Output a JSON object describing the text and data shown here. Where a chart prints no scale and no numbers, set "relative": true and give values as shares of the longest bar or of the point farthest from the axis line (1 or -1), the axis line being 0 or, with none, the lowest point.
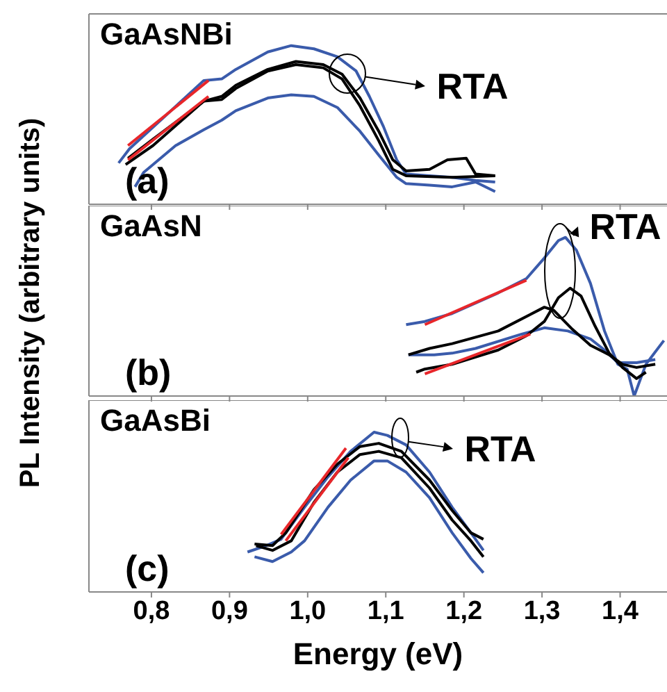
{
  "chart_data": [
    {
      "type": "line",
      "title": "GaAsNBi",
      "relative": true,
      "xlim": [
        0.72,
        1.46
      ],
      "tick_labels": false,
      "xticks": [
        0.8,
        0.9,
        1.0,
        1.1,
        1.2,
        1.3,
        1.4
      ],
      "annotations": [
        "(a)",
        "RTA"
      ],
      "series": [
        {
          "color": "#3a5bab",
          "x": [
            0.758,
            0.772,
            0.867,
            0.89,
            0.908,
            0.949,
            0.979,
            1.008,
            1.038,
            1.062,
            1.079,
            1.097,
            1.114,
            1.126,
            1.156,
            1.185,
            1.215,
            1.24
          ],
          "values": [
            0.26,
            0.35,
            0.78,
            0.79,
            0.85,
            0.96,
            1.0,
            0.98,
            0.93,
            0.84,
            0.68,
            0.49,
            0.28,
            0.19,
            0.18,
            0.17,
            0.15,
            0.14
          ]
        },
        {
          "color": "#3a5bab",
          "x": [
            0.779,
            0.79,
            0.831,
            0.867,
            0.89,
            0.908,
            0.949,
            0.979,
            1.008,
            1.038,
            1.067,
            1.091,
            1.114,
            1.126,
            1.156,
            1.185,
            1.215,
            1.24
          ],
          "values": [
            0.11,
            0.2,
            0.37,
            0.47,
            0.53,
            0.59,
            0.67,
            0.69,
            0.68,
            0.61,
            0.46,
            0.31,
            0.17,
            0.13,
            0.12,
            0.11,
            0.14,
            0.08
          ]
        },
        {
          "color": "#000000",
          "x": [
            0.77,
            0.802,
            0.867,
            0.89,
            0.908,
            0.949,
            0.985,
            1.02,
            1.044,
            1.067,
            1.091,
            1.109,
            1.126,
            1.156,
            1.179,
            1.203,
            1.215,
            1.24
          ],
          "values": [
            0.29,
            0.41,
            0.65,
            0.68,
            0.75,
            0.85,
            0.9,
            0.88,
            0.82,
            0.67,
            0.46,
            0.28,
            0.21,
            0.22,
            0.28,
            0.29,
            0.19,
            0.18
          ]
        },
        {
          "color": "#000000",
          "x": [
            0.767,
            0.802,
            0.867,
            0.89,
            0.908,
            0.949,
            0.985,
            1.02,
            1.044,
            1.067,
            1.091,
            1.109,
            1.126,
            1.185,
            1.24
          ],
          "values": [
            0.25,
            0.37,
            0.65,
            0.66,
            0.73,
            0.84,
            0.88,
            0.86,
            0.79,
            0.62,
            0.4,
            0.22,
            0.18,
            0.17,
            0.18
          ]
        },
        {
          "color": "#e8262a",
          "x": [
            0.77,
            0.873
          ],
          "values": [
            0.37,
            0.78
          ]
        },
        {
          "color": "#e8262a",
          "x": [
            0.77,
            0.873
          ],
          "values": [
            0.28,
            0.68
          ]
        }
      ]
    },
    {
      "type": "line",
      "title": "GaAsN",
      "ylabel": "PL Intensity (arbitrary units)",
      "relative": true,
      "xlim": [
        0.72,
        1.46
      ],
      "tick_labels": false,
      "xticks": [
        0.8,
        0.9,
        1.0,
        1.1,
        1.2,
        1.3,
        1.4
      ],
      "annotations": [
        "(b)",
        "RTA"
      ],
      "series": [
        {
          "color": "#3a5bab",
          "x": [
            1.126,
            1.15,
            1.185,
            1.244,
            1.28,
            1.303,
            1.321,
            1.33,
            1.344,
            1.362,
            1.38,
            1.397,
            1.409,
            1.418,
            1.433,
            1.456
          ],
          "values": [
            0.45,
            0.47,
            0.52,
            0.65,
            0.74,
            0.87,
            0.98,
            1.0,
            0.92,
            0.71,
            0.41,
            0.2,
            0.17,
            0,
            0.2,
            0.35
          ]
        },
        {
          "color": "#3a5bab",
          "x": [
            1.129,
            1.162,
            1.185,
            1.215,
            1.274,
            1.303,
            1.333,
            1.362,
            1.38,
            1.397,
            1.421,
            1.445
          ],
          "values": [
            0.26,
            0.26,
            0.27,
            0.3,
            0.39,
            0.43,
            0.41,
            0.36,
            0.29,
            0.21,
            0.21,
            0.23
          ]
        },
        {
          "color": "#000000",
          "x": [
            1.129,
            1.156,
            1.185,
            1.244,
            1.303,
            1.315,
            1.339,
            1.362,
            1.386,
            1.403,
            1.421,
            1.445
          ],
          "values": [
            0.26,
            0.3,
            0.33,
            0.41,
            0.56,
            0.54,
            0.42,
            0.32,
            0.26,
            0.2,
            0.18,
            0.2
          ]
        },
        {
          "color": "#000000",
          "x": [
            1.139,
            1.15,
            1.185,
            1.244,
            1.28,
            1.303,
            1.321,
            1.336,
            1.35,
            1.368,
            1.386,
            1.403,
            1.421,
            1.433
          ],
          "values": [
            0.15,
            0.17,
            0.2,
            0.29,
            0.38,
            0.47,
            0.62,
            0.68,
            0.63,
            0.44,
            0.27,
            0.18,
            0.11,
            0.15
          ]
        },
        {
          "color": "#e8262a",
          "x": [
            1.15,
            1.28
          ],
          "values": [
            0.45,
            0.73
          ]
        },
        {
          "color": "#e8262a",
          "x": [
            1.15,
            1.285
          ],
          "values": [
            0.14,
            0.39
          ]
        }
      ]
    },
    {
      "type": "line",
      "title": "GaAsBi",
      "xlabel": "Energy (eV)",
      "relative": true,
      "xlim": [
        0.72,
        1.46
      ],
      "tick_labels": "x",
      "xticks": [
        {
          "value": 0.8,
          "label": "0,8"
        },
        {
          "value": 0.9,
          "label": "0,9"
        },
        {
          "value": 1.0,
          "label": "1,0"
        },
        {
          "value": 1.1,
          "label": "1,1"
        },
        {
          "value": 1.2,
          "label": "1,2"
        },
        {
          "value": 1.3,
          "label": "1,3"
        },
        {
          "value": 1.4,
          "label": "1,4"
        }
      ],
      "annotations": [
        "(c)",
        "RTA"
      ],
      "series": [
        {
          "color": "#3a5bab",
          "x": [
            0.923,
            0.947,
            0.966,
            0.996,
            1.026,
            1.055,
            1.085,
            1.102,
            1.126,
            1.156,
            1.185,
            1.209,
            1.225
          ],
          "values": [
            0.25,
            0.29,
            0.33,
            0.53,
            0.72,
            0.88,
            1.0,
            0.98,
            0.92,
            0.75,
            0.53,
            0.37,
            0.26
          ]
        },
        {
          "color": "#3a5bab",
          "x": [
            0.932,
            0.955,
            0.979,
            0.996,
            1.026,
            1.055,
            1.085,
            1.102,
            1.126,
            1.156,
            1.185,
            1.209,
            1.225
          ],
          "values": [
            0.22,
            0.19,
            0.25,
            0.32,
            0.53,
            0.7,
            0.82,
            0.82,
            0.75,
            0.59,
            0.37,
            0.21,
            0.12
          ]
        },
        {
          "color": "#000000",
          "x": [
            0.932,
            0.955,
            0.972,
            1.008,
            1.038,
            1.067,
            1.091,
            1.12,
            1.156,
            1.185,
            1.209,
            1.225
          ],
          "values": [
            0.3,
            0.29,
            0.37,
            0.64,
            0.8,
            0.91,
            0.93,
            0.88,
            0.7,
            0.51,
            0.37,
            0.33
          ]
        },
        {
          "color": "#000000",
          "x": [
            0.934,
            0.955,
            0.979,
            1.008,
            1.038,
            1.067,
            1.091,
            1.12,
            1.156,
            1.185,
            1.209,
            1.225
          ],
          "values": [
            0.29,
            0.26,
            0.32,
            0.56,
            0.75,
            0.86,
            0.88,
            0.84,
            0.65,
            0.45,
            0.32,
            0.22
          ]
        },
        {
          "color": "#e8262a",
          "x": [
            0.966,
            1.049
          ],
          "values": [
            0.36,
            0.9
          ]
        },
        {
          "color": "#e8262a",
          "x": [
            0.972,
            1.052
          ],
          "values": [
            0.32,
            0.84
          ]
        }
      ]
    }
  ]
}
